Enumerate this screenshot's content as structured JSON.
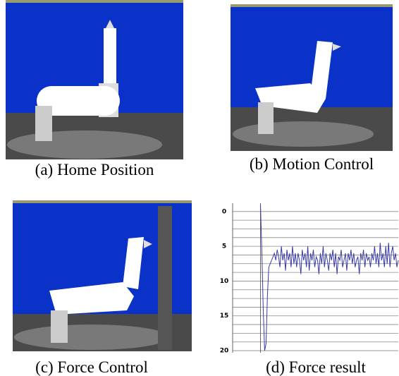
{
  "panels": [
    {
      "caption": "(a) Home Position"
    },
    {
      "caption": "(b) Motion Control"
    },
    {
      "caption": "(c) Force Control"
    }
  ],
  "chart_data": {
    "type": "line",
    "title": "(d) Force result",
    "color": "#3a3aa8",
    "values": [
      -1,
      6,
      14,
      20,
      19,
      12,
      8,
      7.5,
      7,
      6.5,
      6,
      7,
      5.5,
      6.5,
      8,
      5,
      7,
      6,
      8.5,
      5.5,
      7,
      6,
      8,
      5,
      7.5,
      6,
      8,
      6,
      7,
      9,
      5.5,
      7,
      6,
      8,
      5,
      8.5,
      6,
      7,
      5.5,
      8,
      6.5,
      7,
      9,
      6,
      7.5,
      5,
      8,
      6,
      7,
      8.5,
      6,
      7,
      5.5,
      8,
      6,
      9,
      6.5,
      7,
      5.5,
      8,
      7,
      6,
      8.5,
      6,
      7,
      5.5,
      7.5,
      6,
      8,
      7,
      6.5,
      9,
      6,
      7,
      5.5,
      8,
      6,
      7,
      6.5,
      8,
      6,
      7,
      5,
      7.5,
      6,
      8,
      4.5,
      7,
      6,
      8,
      5,
      7.5,
      4.5,
      8,
      6,
      5,
      7,
      6,
      8,
      7
    ],
    "xlim": [
      -20,
      99
    ],
    "ylim": [
      -1.2,
      20.3
    ],
    "y_inverted": true,
    "yticks": [
      0,
      5,
      10,
      15,
      20
    ],
    "grid_lines": [
      0,
      1.25,
      2.5,
      3.75,
      5,
      6.25,
      7.5,
      8.75,
      10,
      11.25,
      12.5,
      13.75,
      15,
      16.25,
      17.5,
      18.75,
      20
    ],
    "grid": true
  }
}
